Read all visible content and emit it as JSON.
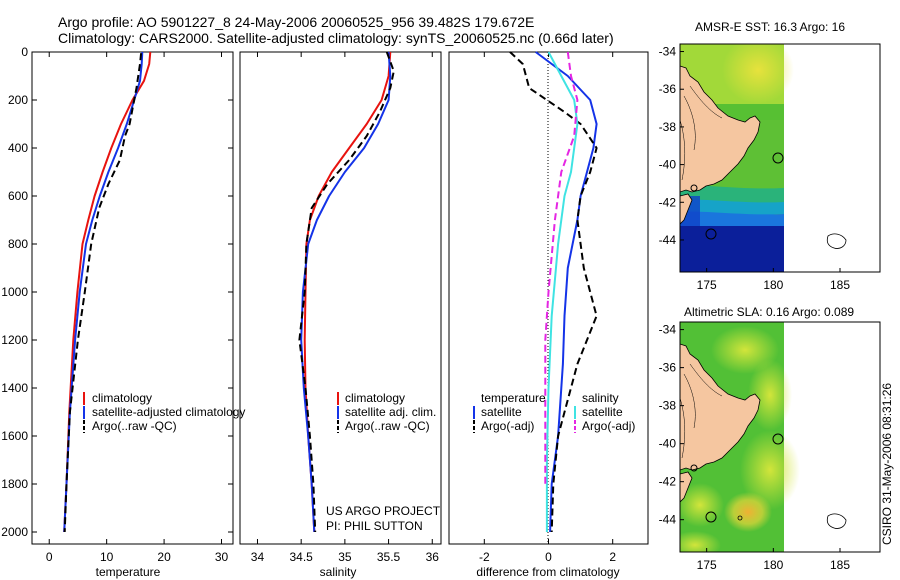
{
  "header": {
    "line1": "Argo profile: AO 5901227_8 24-May-2006 20060525_956 39.482S 179.672E",
    "line2": "Climatology: CARS2000. Satellite-adjusted climatology: synTS_20060525.nc (0.66d later)"
  },
  "project": {
    "line1": "US ARGO PROJECT",
    "line2": "PI: PHIL SUTTON"
  },
  "stamp": "CSIRO 31-May-2006 08:31:26",
  "colors": {
    "red": "#e8130f",
    "blue": "#1433e8",
    "black": "#000000",
    "cyan": "#3fe3e3",
    "magenta": "#e526e3",
    "land": "#f5c6a0",
    "map_green": "#57c033",
    "map_lime": "#b8e23a",
    "map_deep": "#0b1f9a"
  },
  "chart_data": [
    {
      "type": "line",
      "xlabel": "temperature",
      "ylabel": "",
      "xlim": [
        -3,
        32
      ],
      "ylim": [
        2050,
        0
      ],
      "xticks": [
        0,
        10,
        20,
        30
      ],
      "yticks": [
        0,
        200,
        400,
        600,
        800,
        1000,
        1200,
        1400,
        1600,
        1800,
        2000
      ],
      "grid": false,
      "legend": {
        "position": "bottom-right",
        "entries": [
          "climatology",
          "satellite-adjusted climatology",
          "Argo(..raw -QC)"
        ]
      },
      "series": [
        {
          "name": "climatology",
          "color": "red",
          "dash": "solid",
          "x": [
            17.6,
            17.4,
            16.5,
            14.5,
            12.5,
            10.8,
            9.3,
            7.9,
            6.8,
            5.8,
            4.9,
            4.2,
            3.5,
            3.0,
            2.6
          ],
          "y": [
            0,
            50,
            120,
            200,
            300,
            400,
            500,
            600,
            700,
            800,
            1000,
            1200,
            1500,
            1800,
            2000
          ]
        },
        {
          "name": "satellite-adjusted climatology",
          "color": "blue",
          "dash": "solid",
          "x": [
            16.2,
            16.1,
            15.8,
            14.8,
            13.5,
            12.0,
            10.3,
            8.8,
            7.5,
            6.4,
            5.3,
            4.5,
            3.6,
            3.0,
            2.6
          ],
          "y": [
            0,
            50,
            120,
            200,
            300,
            400,
            500,
            600,
            700,
            800,
            1000,
            1200,
            1500,
            1800,
            2000
          ]
        },
        {
          "name": "Argo(..raw -QC)",
          "color": "black",
          "dash": "dashed",
          "x": [
            16.0,
            15.8,
            15.2,
            14.8,
            14.0,
            13.2,
            12.3,
            10.3,
            8.7,
            7.3,
            6.2,
            5.0,
            3.6,
            3.0,
            2.7
          ],
          "y": [
            5,
            50,
            150,
            200,
            300,
            350,
            450,
            550,
            650,
            800,
            1000,
            1200,
            1500,
            1800,
            2000
          ]
        }
      ]
    },
    {
      "type": "line",
      "xlabel": "salinity",
      "ylabel": "",
      "xlim": [
        33.8,
        36.1
      ],
      "ylim": [
        2050,
        0
      ],
      "xticks": [
        34,
        34.5,
        35,
        35.5,
        36
      ],
      "yticks": [],
      "grid": false,
      "legend": {
        "position": "bottom-right",
        "entries": [
          "climatology",
          "satellite adj. clim.",
          "Argo(..raw -QC)"
        ]
      },
      "series": [
        {
          "name": "climatology",
          "color": "red",
          "dash": "solid",
          "x": [
            35.52,
            35.5,
            35.42,
            35.25,
            35.05,
            34.85,
            34.7,
            34.6,
            34.56,
            34.55,
            34.54,
            34.55,
            34.58,
            34.62,
            34.65
          ],
          "y": [
            0,
            100,
            200,
            300,
            400,
            500,
            600,
            700,
            800,
            1000,
            1200,
            1400,
            1600,
            1800,
            2000
          ]
        },
        {
          "name": "satellite adj. clim.",
          "color": "blue",
          "dash": "solid",
          "x": [
            35.5,
            35.52,
            35.5,
            35.38,
            35.22,
            35.0,
            34.82,
            34.68,
            34.58,
            34.52,
            34.5,
            34.53,
            34.58,
            34.62,
            34.65
          ],
          "y": [
            0,
            100,
            200,
            300,
            400,
            500,
            600,
            700,
            800,
            1000,
            1200,
            1400,
            1600,
            1800,
            2000
          ]
        },
        {
          "name": "Argo(..raw -QC)",
          "color": "black",
          "dash": "dashed",
          "x": [
            35.48,
            35.56,
            35.52,
            35.4,
            35.25,
            35.05,
            34.8,
            34.62,
            34.56,
            34.54,
            34.48,
            34.55,
            34.6,
            34.64,
            34.66
          ],
          "y": [
            0,
            80,
            150,
            250,
            350,
            450,
            550,
            650,
            800,
            1000,
            1200,
            1400,
            1600,
            1800,
            2000
          ]
        }
      ]
    },
    {
      "type": "line",
      "xlabel": "difference from climatology",
      "ylabel": "",
      "xlim": [
        -3.1,
        3.1
      ],
      "ylim": [
        2050,
        0
      ],
      "xticks": [
        -2,
        0,
        2
      ],
      "yticks": [],
      "grid": false,
      "legend": {
        "position": "bottom",
        "groups": [
          "temperature",
          "salinity"
        ],
        "entries": [
          "satellite",
          "Argo(-adj)",
          "satellite",
          "Argo(-adj)"
        ]
      },
      "series": [
        {
          "name": "satellite",
          "group": "temperature",
          "color": "blue",
          "dash": "solid",
          "x": [
            -0.4,
            0.6,
            1.3,
            1.5,
            1.4,
            1.2,
            1.0,
            0.9,
            0.6,
            0.5,
            0.45,
            0.4,
            0.3,
            0.1,
            0.05
          ],
          "y": [
            0,
            100,
            200,
            300,
            400,
            500,
            600,
            700,
            900,
            1100,
            1300,
            1400,
            1600,
            1800,
            2000
          ]
        },
        {
          "name": "Argo(-adj)",
          "group": "temperature",
          "color": "black",
          "dash": "dashed",
          "x": [
            -1.2,
            -0.8,
            -0.6,
            0.5,
            1.0,
            1.5,
            1.3,
            1.0,
            0.9,
            1.1,
            1.5,
            0.9,
            0.3,
            0.15,
            0.1
          ],
          "y": [
            0,
            50,
            150,
            250,
            300,
            400,
            500,
            600,
            700,
            900,
            1100,
            1300,
            1600,
            1800,
            2000
          ]
        },
        {
          "name": "satellite",
          "group": "salinity",
          "color": "cyan",
          "dash": "solid",
          "x": [
            0.0,
            0.4,
            0.8,
            0.9,
            0.8,
            0.7,
            0.5,
            0.3,
            0.1,
            0.0,
            -0.05,
            -0.05
          ],
          "y": [
            0,
            100,
            200,
            300,
            400,
            500,
            600,
            800,
            1100,
            1400,
            1700,
            2000
          ]
        },
        {
          "name": "Argo(-adj)",
          "group": "salinity",
          "color": "magenta",
          "dash": "dashed",
          "x": [
            0.6,
            0.7,
            0.9,
            0.8,
            0.4,
            0.2,
            0.0,
            -0.1,
            -0.1,
            -0.1,
            -0.1
          ],
          "y": [
            0,
            100,
            200,
            350,
            500,
            700,
            1000,
            1200,
            1400,
            1600,
            1800
          ]
        }
      ]
    },
    {
      "type": "heatmap",
      "title": "AMSR-E SST: 16.3 Argo: 16",
      "xlim": [
        173,
        188
      ],
      "ylim": [
        -45.7,
        -33.6
      ],
      "xticks": [
        175,
        180,
        185
      ],
      "yticks": [
        -34,
        -36,
        -38,
        -40,
        -42,
        -44
      ],
      "grid": false,
      "profile_location": {
        "lon": 179.672,
        "lat": -39.482
      }
    },
    {
      "type": "heatmap",
      "title": "Altimetric SLA: 0.16 Argo: 0.089",
      "xlim": [
        173,
        188
      ],
      "ylim": [
        -45.7,
        -33.6
      ],
      "xticks": [
        175,
        180,
        185
      ],
      "yticks": [
        -34,
        -36,
        -38,
        -40,
        -42,
        -44
      ],
      "grid": false,
      "profile_location": {
        "lon": 179.672,
        "lat": -39.482
      }
    }
  ]
}
